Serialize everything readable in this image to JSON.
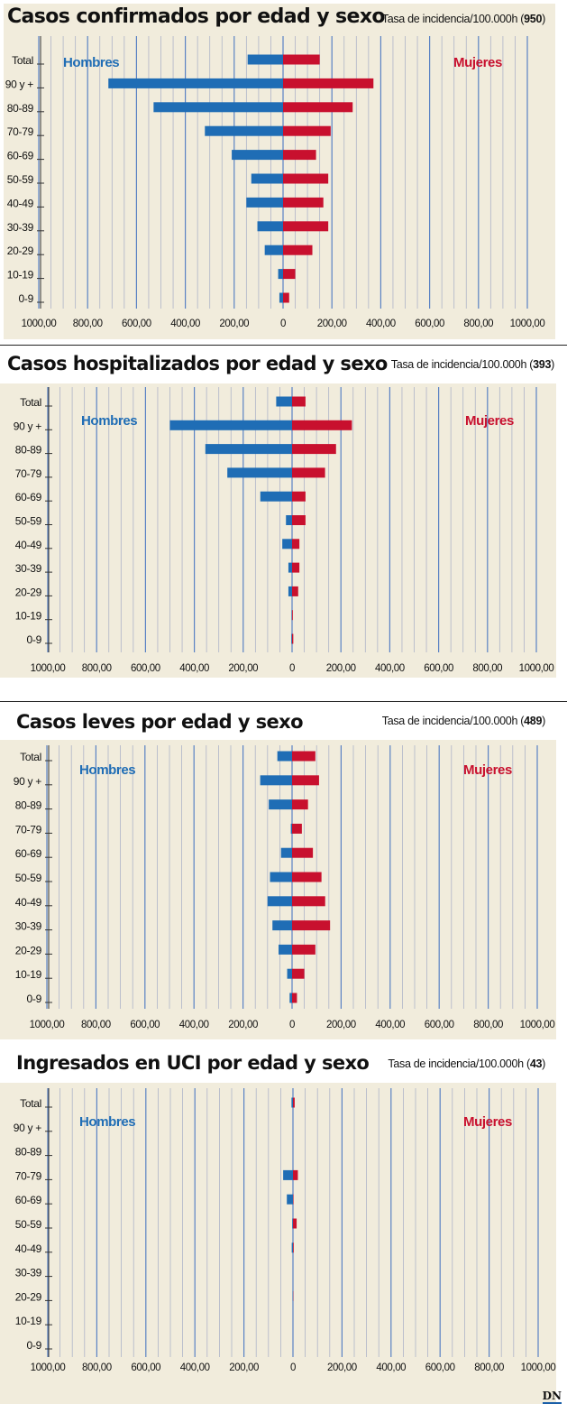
{
  "colors": {
    "hombres": "#1f6db5",
    "mujeres": "#c8102e",
    "panel_bg": "#f1ecdc",
    "major_grid": "#5a82c4",
    "minor_grid": "#aeb4c8"
  },
  "brand": {
    "logo": "DN"
  },
  "panels": [
    {
      "title": "Casos confirmados por edad y sexo",
      "rate_label": "Tasa de incidencia/100.000h",
      "rate_value": "950",
      "chart_data": {
        "type": "bar",
        "orientation": "horizontal-population-pyramid",
        "categories": [
          "Total",
          "90 y +",
          "80-89",
          "70-79",
          "60-69",
          "50-59",
          "40-49",
          "30-39",
          "20-29",
          "10-19",
          "0-9"
        ],
        "series": [
          {
            "name": "Hombres",
            "values": [
              145,
              715,
              530,
              320,
              210,
              130,
              150,
              105,
              75,
              20,
              15
            ]
          },
          {
            "name": "Mujeres",
            "values": [
              150,
              370,
              285,
              195,
              135,
              185,
              165,
              185,
              120,
              50,
              25
            ]
          }
        ],
        "legend": {
          "left": "Hombres",
          "right": "Mujeres"
        },
        "xlim": [
          -1000,
          1000
        ],
        "xticks": [
          -1000,
          -800,
          -600,
          -400,
          -200,
          0,
          200,
          400,
          600,
          800,
          1000
        ],
        "xticklabels": [
          "1000,00",
          "800,00",
          "600,00",
          "400,00",
          "200,00",
          "0",
          "200,00",
          "400,00",
          "600,00",
          "800,00",
          "1000,00"
        ]
      }
    },
    {
      "title": "Casos hospitalizados por edad y sexo",
      "rate_label": "Tasa de incidencia/100.000h",
      "rate_value": "393",
      "chart_data": {
        "type": "bar",
        "orientation": "horizontal-population-pyramid",
        "categories": [
          "Total",
          "90 y +",
          "80-89",
          "70-79",
          "60-69",
          "50-59",
          "40-49",
          "30-39",
          "20-29",
          "10-19",
          "0-9"
        ],
        "series": [
          {
            "name": "Hombres",
            "values": [
              65,
              500,
              355,
              265,
              130,
              25,
              40,
              15,
              15,
              2,
              3
            ]
          },
          {
            "name": "Mujeres",
            "values": [
              55,
              245,
              180,
              135,
              55,
              55,
              30,
              30,
              25,
              3,
              5
            ]
          }
        ],
        "legend": {
          "left": "Hombres",
          "right": "Mujeres"
        },
        "xlim": [
          -1000,
          1000
        ],
        "xticks": [
          -1000,
          -800,
          -600,
          -400,
          -200,
          0,
          200,
          400,
          600,
          800,
          1000
        ],
        "xticklabels": [
          "1000,00",
          "800,00",
          "600,00",
          "400,00",
          "200,00",
          "0",
          "200,00",
          "400,00",
          "600,00",
          "800,00",
          "1000,00"
        ]
      }
    },
    {
      "title": "Casos leves por edad y sexo",
      "rate_label": "Tasa de incidencia/100.000h",
      "rate_value": "489",
      "chart_data": {
        "type": "bar",
        "orientation": "horizontal-population-pyramid",
        "categories": [
          "Total",
          "90 y +",
          "80-89",
          "70-79",
          "60-69",
          "50-59",
          "40-49",
          "30-39",
          "20-29",
          "10-19",
          "0-9"
        ],
        "series": [
          {
            "name": "Hombres",
            "values": [
              60,
              130,
              95,
              5,
              45,
              90,
              100,
              80,
              55,
              20,
              10
            ]
          },
          {
            "name": "Mujeres",
            "values": [
              95,
              110,
              65,
              40,
              85,
              120,
              135,
              155,
              95,
              50,
              20
            ]
          }
        ],
        "legend": {
          "left": "Hombres",
          "right": "Mujeres"
        },
        "xlim": [
          -1000,
          1000
        ],
        "xticks": [
          -1000,
          -800,
          -600,
          -400,
          -200,
          0,
          200,
          400,
          600,
          800,
          1000
        ],
        "xticklabels": [
          "1000,00",
          "800,00",
          "600,00",
          "400,00",
          "200,00",
          "0",
          "200,00",
          "400,00",
          "600,00",
          "800,00",
          "1000,00"
        ]
      }
    },
    {
      "title": "Ingresados en UCI por edad y sexo",
      "rate_label": "Tasa de incidencia/100.000h",
      "rate_value": "43",
      "chart_data": {
        "type": "bar",
        "orientation": "horizontal-population-pyramid",
        "categories": [
          "Total",
          "90 y +",
          "80-89",
          "70-79",
          "60-69",
          "50-59",
          "40-49",
          "30-39",
          "20-29",
          "10-19",
          "0-9"
        ],
        "series": [
          {
            "name": "Hombres",
            "values": [
              6,
              0,
              0,
              40,
              25,
              3,
              5,
              0,
              1,
              0,
              0
            ]
          },
          {
            "name": "Mujeres",
            "values": [
              7,
              0,
              0,
              20,
              2,
              15,
              3,
              0,
              1,
              0,
              0
            ]
          }
        ],
        "legend": {
          "left": "Hombres",
          "right": "Mujeres"
        },
        "xlim": [
          -1000,
          1000
        ],
        "xticks": [
          -1000,
          -800,
          -600,
          -400,
          -200,
          0,
          200,
          400,
          600,
          800,
          1000
        ],
        "xticklabels": [
          "1000,00",
          "800,00",
          "600,00",
          "400,00",
          "200,00",
          "0",
          "200,00",
          "400,00",
          "600,00",
          "800,00",
          "1000,00"
        ]
      }
    }
  ]
}
